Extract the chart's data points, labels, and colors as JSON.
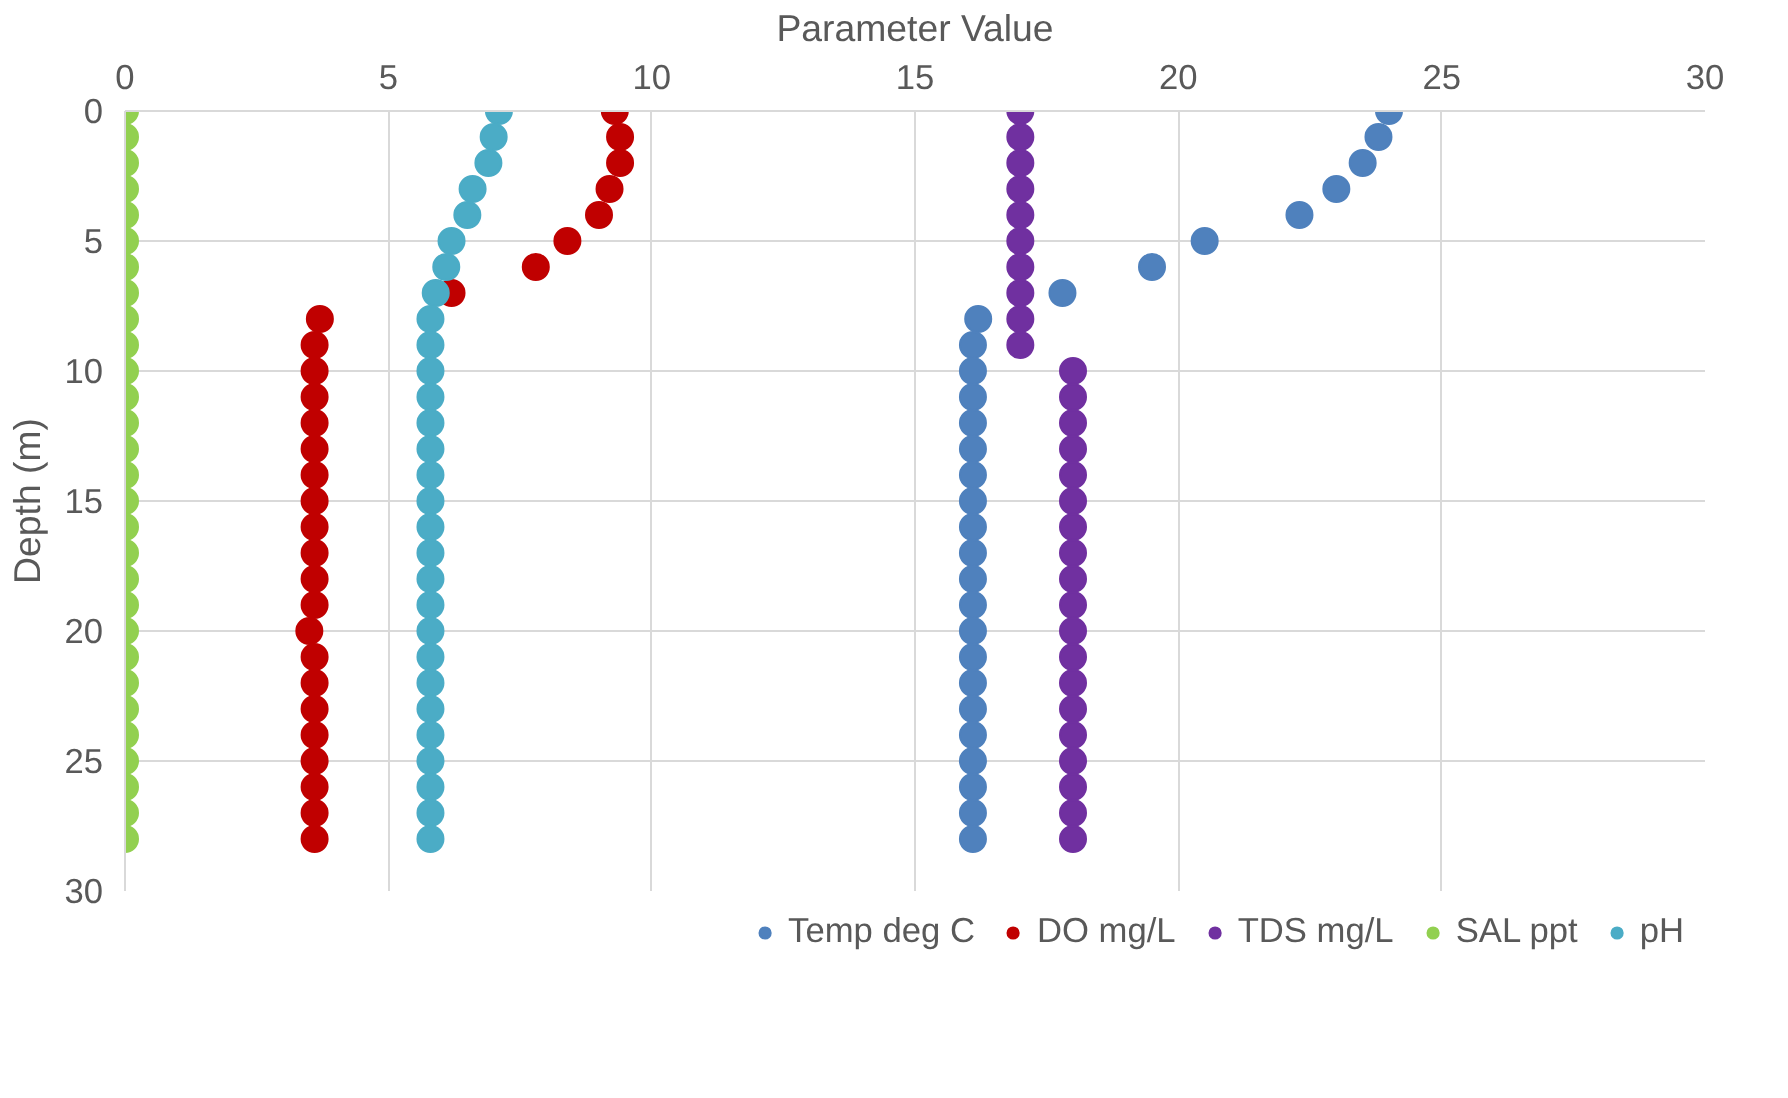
{
  "chart_data": {
    "type": "scatter",
    "xlabel": "Parameter Value",
    "ylabel": "Depth (m)",
    "xlim": [
      0,
      30
    ],
    "xticks": [
      0,
      5,
      10,
      15,
      20,
      25,
      30
    ],
    "ylim": [
      30,
      0
    ],
    "yticks": [
      0,
      5,
      10,
      15,
      20,
      25,
      30
    ],
    "grid": true,
    "legend": "bottom",
    "marker": "circle",
    "series": [
      {
        "name": "Temp deg C",
        "color": "#4f81bd",
        "x": [
          24.0,
          23.8,
          23.5,
          23.0,
          22.3,
          20.5,
          19.5,
          17.8,
          16.2,
          16.1,
          16.1,
          16.1,
          16.1,
          16.1,
          16.1,
          16.1,
          16.1,
          16.1,
          16.1,
          16.1,
          16.1,
          16.1,
          16.1,
          16.1,
          16.1,
          16.1,
          16.1,
          16.1,
          16.1
        ],
        "values": [
          0,
          1,
          2,
          3,
          4,
          5,
          6,
          7,
          8,
          9,
          10,
          11,
          12,
          13,
          14,
          15,
          16,
          17,
          18,
          19,
          20,
          21,
          22,
          23,
          24,
          25,
          26,
          27,
          28
        ]
      },
      {
        "name": "DO mg/L",
        "color": "#c00000",
        "x": [
          9.3,
          9.4,
          9.4,
          9.2,
          9.0,
          8.4,
          7.8,
          6.2,
          3.7,
          3.6,
          3.6,
          3.6,
          3.6,
          3.6,
          3.6,
          3.6,
          3.6,
          3.6,
          3.6,
          3.6,
          3.5,
          3.6,
          3.6,
          3.6,
          3.6,
          3.6,
          3.6,
          3.6,
          3.6
        ],
        "values": [
          0,
          1,
          2,
          3,
          4,
          5,
          6,
          7,
          8,
          9,
          10,
          11,
          12,
          13,
          14,
          15,
          16,
          17,
          18,
          19,
          20,
          21,
          22,
          23,
          24,
          25,
          26,
          27,
          28
        ]
      },
      {
        "name": "TDS mg/L",
        "color": "#7030a0",
        "x": [
          17,
          17,
          17,
          17,
          17,
          17,
          17,
          17,
          17,
          17,
          18,
          18,
          18,
          18,
          18,
          18,
          18,
          18,
          18,
          18,
          18,
          18,
          18,
          18,
          18,
          18,
          18,
          18,
          18
        ],
        "values": [
          0,
          1,
          2,
          3,
          4,
          5,
          6,
          7,
          8,
          9,
          10,
          11,
          12,
          13,
          14,
          15,
          16,
          17,
          18,
          19,
          20,
          21,
          22,
          23,
          24,
          25,
          26,
          27,
          28
        ]
      },
      {
        "name": "SAL ppt",
        "color": "#92d050",
        "x": [
          0,
          0,
          0,
          0,
          0,
          0,
          0,
          0,
          0,
          0,
          0,
          0,
          0,
          0,
          0,
          0,
          0,
          0,
          0,
          0,
          0,
          0,
          0,
          0,
          0,
          0,
          0,
          0,
          0
        ],
        "values": [
          0,
          1,
          2,
          3,
          4,
          5,
          6,
          7,
          8,
          9,
          10,
          11,
          12,
          13,
          14,
          15,
          16,
          17,
          18,
          19,
          20,
          21,
          22,
          23,
          24,
          25,
          26,
          27,
          28
        ]
      },
      {
        "name": "pH",
        "color": "#4bacc6",
        "x": [
          7.1,
          7.0,
          6.9,
          6.6,
          6.5,
          6.2,
          6.1,
          5.9,
          5.8,
          5.8,
          5.8,
          5.8,
          5.8,
          5.8,
          5.8,
          5.8,
          5.8,
          5.8,
          5.8,
          5.8,
          5.8,
          5.8,
          5.8,
          5.8,
          5.8,
          5.8,
          5.8,
          5.8,
          5.8
        ],
        "values": [
          0,
          1,
          2,
          3,
          4,
          5,
          6,
          7,
          8,
          9,
          10,
          11,
          12,
          13,
          14,
          15,
          16,
          17,
          18,
          19,
          20,
          21,
          22,
          23,
          24,
          25,
          26,
          27,
          28
        ]
      }
    ]
  }
}
